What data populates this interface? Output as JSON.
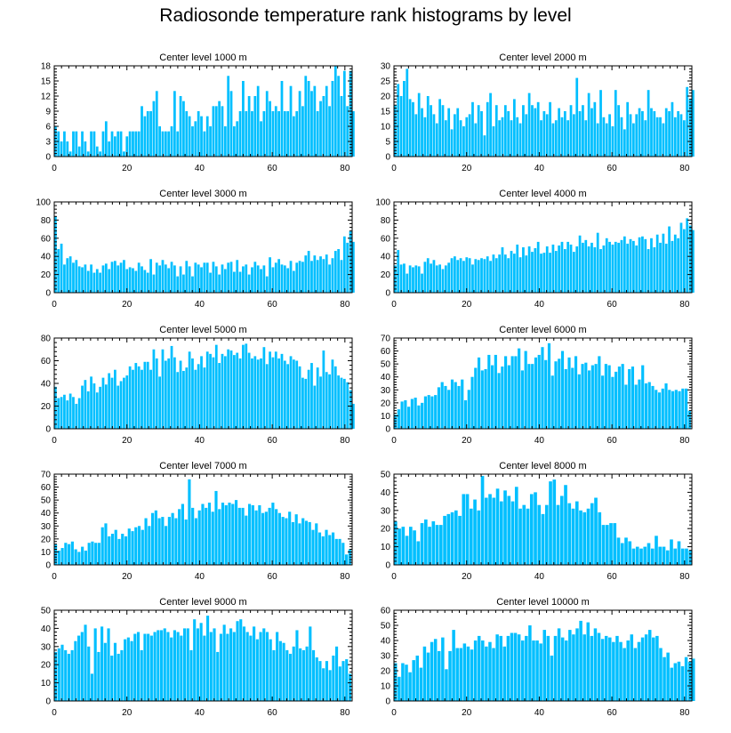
{
  "title": "Radiosonde temperature rank histograms by level",
  "colors": {
    "bar": "#00bfff",
    "axis": "#000000",
    "background": "#ffffff"
  },
  "chart_data": [
    {
      "type": "bar",
      "title": "Center level 1000 m",
      "xlim": [
        0,
        82
      ],
      "ylim": [
        0,
        18
      ],
      "xticks": [
        0,
        20,
        40,
        60,
        80
      ],
      "yticks": [
        0,
        3,
        6,
        9,
        12,
        15,
        18
      ],
      "values": [
        6,
        5,
        3,
        5,
        3,
        1,
        5,
        5,
        2,
        5,
        3,
        1,
        5,
        5,
        2,
        1,
        5,
        7,
        3,
        5,
        4,
        5,
        5,
        1,
        4,
        5,
        5,
        5,
        5,
        10,
        8,
        9,
        9,
        11,
        13,
        6,
        5,
        5,
        5,
        6,
        13,
        5,
        12,
        11,
        9,
        8,
        6,
        7,
        9,
        8,
        5,
        8,
        6,
        10,
        10,
        11,
        10,
        6,
        16,
        13,
        6,
        7,
        9,
        15,
        9,
        12,
        9,
        12,
        14,
        7,
        9,
        13,
        11,
        9,
        10,
        9,
        15,
        9,
        9,
        14,
        8,
        9,
        13,
        10,
        16,
        15,
        13,
        14,
        9,
        11,
        12,
        14,
        10,
        15,
        18,
        16,
        12,
        17,
        10,
        17,
        9
      ],
      "x_step": 0.82
    },
    {
      "type": "bar",
      "title": "Center level 2000 m",
      "xlim": [
        0,
        82
      ],
      "ylim": [
        0,
        30
      ],
      "xticks": [
        0,
        20,
        40,
        60,
        80
      ],
      "yticks": [
        0,
        5,
        10,
        15,
        20,
        25,
        30
      ],
      "values": [
        17,
        24,
        20,
        25,
        29,
        19,
        18,
        14,
        21,
        16,
        13,
        20,
        17,
        14,
        11,
        19,
        17,
        12,
        16,
        9,
        14,
        16,
        12,
        10,
        13,
        14,
        18,
        11,
        17,
        15,
        7,
        18,
        21,
        10,
        17,
        12,
        13,
        17,
        15,
        12,
        19,
        13,
        11,
        17,
        14,
        21,
        17,
        16,
        18,
        12,
        15,
        14,
        18,
        11,
        12,
        16,
        13,
        15,
        12,
        17,
        14,
        26,
        15,
        17,
        12,
        21,
        16,
        18,
        11,
        22,
        13,
        11,
        14,
        10,
        22,
        17,
        13,
        9,
        18,
        14,
        11,
        14,
        16,
        15,
        12,
        22,
        16,
        15,
        13,
        13,
        11,
        16,
        15,
        18,
        13,
        15,
        14,
        12,
        23,
        19,
        22
      ],
      "x_step": 0.82
    },
    {
      "type": "bar",
      "title": "Center level 3000 m",
      "xlim": [
        0,
        82
      ],
      "ylim": [
        0,
        100
      ],
      "xticks": [
        0,
        20,
        40,
        60,
        80
      ],
      "yticks": [
        0,
        20,
        40,
        60,
        80,
        100
      ],
      "values": [
        84,
        48,
        54,
        31,
        38,
        40,
        33,
        36,
        29,
        28,
        31,
        24,
        31,
        22,
        26,
        22,
        30,
        32,
        26,
        34,
        35,
        30,
        33,
        36,
        26,
        28,
        27,
        24,
        33,
        29,
        25,
        22,
        37,
        20,
        33,
        30,
        36,
        31,
        27,
        34,
        30,
        18,
        29,
        20,
        35,
        29,
        18,
        33,
        31,
        28,
        33,
        33,
        22,
        34,
        29,
        20,
        31,
        26,
        33,
        34,
        23,
        36,
        23,
        29,
        31,
        20,
        28,
        34,
        30,
        26,
        30,
        18,
        39,
        28,
        33,
        37,
        31,
        30,
        27,
        35,
        24,
        33,
        35,
        34,
        41,
        46,
        35,
        41,
        36,
        40,
        37,
        42,
        31,
        38,
        46,
        48,
        36,
        62,
        55,
        68,
        56
      ],
      "x_step": 0.82
    },
    {
      "type": "bar",
      "title": "Center level 4000 m",
      "xlim": [
        0,
        82
      ],
      "ylim": [
        0,
        100
      ],
      "xticks": [
        0,
        20,
        40,
        60,
        80
      ],
      "yticks": [
        0,
        20,
        40,
        60,
        80,
        100
      ],
      "values": [
        30,
        47,
        31,
        32,
        21,
        30,
        28,
        30,
        29,
        21,
        34,
        38,
        32,
        36,
        30,
        31,
        26,
        30,
        33,
        38,
        40,
        36,
        38,
        35,
        39,
        38,
        31,
        37,
        36,
        38,
        37,
        40,
        35,
        42,
        38,
        42,
        50,
        42,
        38,
        46,
        43,
        53,
        39,
        50,
        41,
        51,
        45,
        49,
        56,
        43,
        44,
        51,
        44,
        53,
        46,
        52,
        56,
        48,
        56,
        53,
        45,
        51,
        63,
        55,
        58,
        51,
        55,
        50,
        66,
        48,
        52,
        60,
        56,
        53,
        56,
        55,
        58,
        62,
        54,
        59,
        57,
        52,
        61,
        62,
        59,
        48,
        60,
        50,
        64,
        55,
        65,
        54,
        73,
        57,
        64,
        60,
        77,
        70,
        82,
        74,
        69
      ],
      "x_step": 0.82
    },
    {
      "type": "bar",
      "title": "Center level 5000 m",
      "xlim": [
        0,
        82
      ],
      "ylim": [
        0,
        80
      ],
      "xticks": [
        0,
        20,
        40,
        60,
        80
      ],
      "yticks": [
        0,
        20,
        40,
        60,
        80
      ],
      "values": [
        37,
        27,
        28,
        30,
        25,
        31,
        28,
        22,
        27,
        38,
        43,
        33,
        46,
        40,
        32,
        37,
        45,
        39,
        49,
        45,
        52,
        38,
        42,
        45,
        47,
        55,
        52,
        58,
        55,
        52,
        59,
        59,
        52,
        70,
        62,
        46,
        70,
        60,
        62,
        73,
        63,
        50,
        60,
        51,
        54,
        68,
        62,
        52,
        57,
        64,
        54,
        68,
        66,
        63,
        74,
        58,
        66,
        64,
        70,
        69,
        65,
        67,
        62,
        74,
        75,
        67,
        62,
        64,
        61,
        62,
        72,
        57,
        68,
        63,
        68,
        62,
        66,
        60,
        57,
        64,
        61,
        60,
        55,
        45,
        44,
        52,
        58,
        38,
        54,
        46,
        69,
        50,
        48,
        61,
        55,
        47,
        45,
        44,
        41,
        34,
        22
      ],
      "x_step": 0.82
    },
    {
      "type": "bar",
      "title": "Center level 6000 m",
      "xlim": [
        0,
        82
      ],
      "ylim": [
        0,
        70
      ],
      "xticks": [
        0,
        20,
        40,
        60,
        80
      ],
      "yticks": [
        0,
        10,
        20,
        30,
        40,
        50,
        60,
        70
      ],
      "values": [
        11,
        15,
        21,
        22,
        17,
        23,
        24,
        18,
        20,
        25,
        26,
        25,
        26,
        32,
        36,
        33,
        30,
        38,
        36,
        33,
        38,
        22,
        30,
        40,
        47,
        55,
        45,
        46,
        57,
        49,
        57,
        43,
        48,
        56,
        49,
        56,
        56,
        62,
        45,
        60,
        50,
        50,
        55,
        57,
        63,
        53,
        66,
        41,
        52,
        54,
        60,
        46,
        55,
        47,
        56,
        42,
        50,
        51,
        45,
        49,
        50,
        56,
        41,
        50,
        49,
        40,
        44,
        48,
        50,
        34,
        46,
        48,
        34,
        38,
        49,
        35,
        36,
        33,
        30,
        28,
        31,
        35,
        30,
        29,
        30,
        29,
        31,
        31,
        14
      ],
      "x_step": 0.92
    },
    {
      "type": "bar",
      "title": "Center level 7000 m",
      "xlim": [
        0,
        82
      ],
      "ylim": [
        0,
        70
      ],
      "xticks": [
        0,
        20,
        40,
        60,
        80
      ],
      "yticks": [
        0,
        10,
        20,
        30,
        40,
        50,
        60,
        70
      ],
      "values": [
        16,
        11,
        13,
        17,
        16,
        18,
        12,
        10,
        14,
        11,
        17,
        18,
        17,
        17,
        29,
        32,
        22,
        24,
        27,
        20,
        24,
        22,
        28,
        26,
        29,
        30,
        27,
        36,
        30,
        40,
        42,
        36,
        37,
        30,
        37,
        40,
        36,
        43,
        47,
        35,
        66,
        44,
        36,
        42,
        47,
        44,
        48,
        41,
        57,
        43,
        48,
        46,
        48,
        47,
        50,
        44,
        44,
        38,
        47,
        46,
        42,
        46,
        40,
        41,
        44,
        48,
        43,
        40,
        37,
        36,
        41,
        33,
        39,
        32,
        36,
        34,
        33,
        27,
        32,
        25,
        22,
        27,
        23,
        25,
        20,
        20,
        17,
        8,
        12
      ],
      "x_step": 0.92
    },
    {
      "type": "bar",
      "title": "Center level 8000 m",
      "xlim": [
        0,
        82
      ],
      "ylim": [
        0,
        50
      ],
      "xticks": [
        0,
        20,
        40,
        60,
        80
      ],
      "yticks": [
        0,
        10,
        20,
        30,
        40,
        50
      ],
      "values": [
        24,
        20,
        21,
        16,
        21,
        19,
        13,
        23,
        25,
        21,
        24,
        22,
        22,
        27,
        28,
        29,
        30,
        27,
        39,
        39,
        31,
        36,
        30,
        49,
        37,
        39,
        37,
        42,
        35,
        41,
        38,
        35,
        43,
        31,
        33,
        31,
        39,
        40,
        33,
        28,
        33,
        46,
        47,
        33,
        38,
        44,
        34,
        31,
        35,
        30,
        29,
        31,
        34,
        37,
        29,
        22,
        22,
        23,
        23,
        15,
        12,
        15,
        13,
        9,
        10,
        9,
        10,
        12,
        9,
        16,
        10,
        10,
        8,
        14,
        9,
        13,
        9,
        9,
        8
      ],
      "x_step": 1.04
    },
    {
      "type": "bar",
      "title": "Center level 9000 m",
      "xlim": [
        0,
        82
      ],
      "ylim": [
        0,
        50
      ],
      "xticks": [
        0,
        20,
        40,
        60,
        80
      ],
      "yticks": [
        0,
        10,
        20,
        30,
        40,
        50
      ],
      "values": [
        27,
        29,
        31,
        28,
        26,
        28,
        33,
        36,
        38,
        42,
        30,
        15,
        40,
        27,
        41,
        32,
        40,
        25,
        32,
        26,
        28,
        34,
        35,
        33,
        37,
        38,
        28,
        37,
        37,
        36,
        38,
        39,
        39,
        40,
        38,
        35,
        39,
        38,
        36,
        40,
        40,
        28,
        45,
        40,
        43,
        36,
        47,
        38,
        40,
        27,
        37,
        42,
        37,
        40,
        38,
        44,
        45,
        41,
        38,
        36,
        41,
        34,
        38,
        40,
        38,
        34,
        28,
        38,
        33,
        32,
        28,
        26,
        30,
        39,
        29,
        28,
        30,
        41,
        28,
        24,
        22,
        18,
        22,
        17,
        25,
        30,
        19,
        22,
        23,
        15
      ],
      "x_step": 0.91
    },
    {
      "type": "bar",
      "title": "Center level 10000 m",
      "xlim": [
        0,
        82
      ],
      "ylim": [
        0,
        60
      ],
      "xticks": [
        0,
        20,
        40,
        60,
        80
      ],
      "yticks": [
        0,
        10,
        20,
        30,
        40,
        50,
        60
      ],
      "values": [
        25,
        16,
        25,
        24,
        19,
        27,
        30,
        22,
        36,
        32,
        39,
        41,
        33,
        42,
        21,
        33,
        47,
        35,
        35,
        38,
        36,
        34,
        40,
        43,
        40,
        36,
        39,
        35,
        44,
        43,
        36,
        43,
        45,
        45,
        44,
        40,
        43,
        50,
        40,
        40,
        38,
        47,
        43,
        30,
        43,
        48,
        42,
        40,
        47,
        44,
        48,
        53,
        44,
        52,
        43,
        48,
        45,
        41,
        43,
        42,
        39,
        43,
        39,
        35,
        40,
        44,
        35,
        39,
        42,
        44,
        47,
        42,
        43,
        35,
        29,
        32,
        22,
        25,
        26,
        23,
        29,
        26,
        28
      ],
      "x_step": 1.0
    }
  ]
}
